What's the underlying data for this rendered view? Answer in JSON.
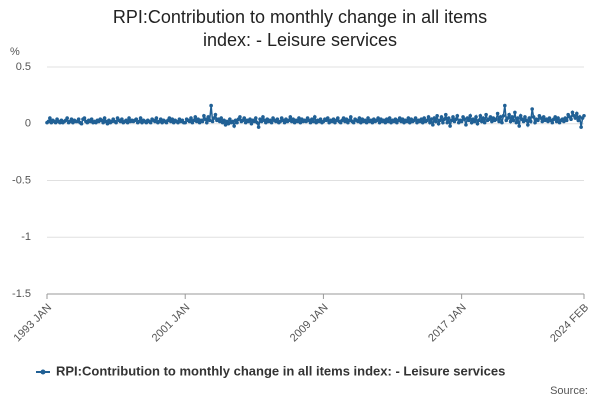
{
  "chart_data": {
    "type": "line",
    "title": "RPI:Contribution to monthly change in all items index: - Leisure services",
    "y_label": "%",
    "source": "Source:",
    "categories": [
      "1993 JAN",
      null,
      null,
      null,
      null,
      null,
      null,
      null,
      null,
      null,
      null,
      null,
      null,
      null,
      null,
      null,
      null,
      null,
      null,
      null,
      null,
      null,
      null,
      null,
      null,
      null,
      null,
      null,
      null,
      null,
      null,
      null,
      null,
      null,
      null,
      null,
      null,
      null,
      null,
      null,
      null,
      null,
      null,
      null,
      null,
      null,
      null,
      null,
      null,
      null,
      null,
      null,
      null,
      null,
      null,
      null,
      null,
      null,
      null,
      null,
      null,
      null,
      null,
      null,
      null,
      null,
      null,
      null,
      null,
      null,
      null,
      null,
      null,
      null,
      null,
      null,
      null,
      null,
      null,
      null,
      null,
      null,
      null,
      null,
      null,
      null,
      null,
      null,
      null,
      null,
      null,
      null,
      null,
      null,
      null,
      null,
      "2001 JAN",
      null,
      null,
      null,
      null,
      null,
      null,
      null,
      null,
      null,
      null,
      null,
      null,
      null,
      null,
      null,
      null,
      null,
      null,
      null,
      null,
      null,
      null,
      null,
      null,
      null,
      null,
      null,
      null,
      null,
      null,
      null,
      null,
      null,
      null,
      null,
      null,
      null,
      null,
      null,
      null,
      null,
      null,
      null,
      null,
      null,
      null,
      null,
      null,
      null,
      null,
      null,
      null,
      null,
      null,
      null,
      null,
      null,
      null,
      null,
      null,
      null,
      null,
      null,
      null,
      null,
      null,
      null,
      null,
      null,
      null,
      null,
      null,
      null,
      null,
      null,
      null,
      null,
      null,
      null,
      null,
      null,
      null,
      null,
      null,
      null,
      null,
      null,
      null,
      null,
      null,
      null,
      null,
      null,
      null,
      null,
      "2009 JAN",
      null,
      null,
      null,
      null,
      null,
      null,
      null,
      null,
      null,
      null,
      null,
      null,
      null,
      null,
      null,
      null,
      null,
      null,
      null,
      null,
      null,
      null,
      null,
      null,
      null,
      null,
      null,
      null,
      null,
      null,
      null,
      null,
      null,
      null,
      null,
      null,
      null,
      null,
      null,
      null,
      null,
      null,
      null,
      null,
      null,
      null,
      null,
      null,
      null,
      null,
      null,
      null,
      null,
      null,
      null,
      null,
      null,
      null,
      null,
      null,
      null,
      null,
      null,
      null,
      null,
      null,
      null,
      null,
      null,
      null,
      null,
      null,
      null,
      null,
      null,
      null,
      null,
      null,
      null,
      null,
      null,
      null,
      null,
      null,
      null,
      null,
      null,
      null,
      null,
      null,
      null,
      null,
      null,
      null,
      null,
      "2017 JAN",
      null,
      null,
      null,
      null,
      null,
      null,
      null,
      null,
      null,
      null,
      null,
      null,
      null,
      null,
      null,
      null,
      null,
      null,
      null,
      null,
      null,
      null,
      null,
      null,
      null,
      null,
      null,
      null,
      null,
      null,
      null,
      null,
      null,
      null,
      null,
      null,
      null,
      null,
      null,
      null,
      null,
      null,
      null,
      null,
      null,
      null,
      null,
      null,
      null,
      null,
      null,
      null,
      null,
      null,
      null,
      null,
      null,
      null,
      null,
      null,
      null,
      null,
      null,
      null,
      null,
      null,
      null,
      null,
      null,
      null,
      null,
      null,
      null,
      null,
      null,
      null,
      null,
      null,
      null,
      null,
      null,
      null,
      null,
      null,
      "2024 FEB"
    ],
    "series": [
      {
        "name": "RPI:Contribution to monthly change in all items index: - Leisure services",
        "color": "#206095",
        "values": [
          0.01,
          0.02,
          0.05,
          0.01,
          0.03,
          0.02,
          0.01,
          0.04,
          0.02,
          0.01,
          0.03,
          0.01,
          0.02,
          0.03,
          0.05,
          0.01,
          0.02,
          0.04,
          0.01,
          0.03,
          0.02,
          0.02,
          0.04,
          0.01,
          0.0,
          0.04,
          0.05,
          0.02,
          0.01,
          0.03,
          0.02,
          0.04,
          0.01,
          0.02,
          0.01,
          0.03,
          0.02,
          0.04,
          0.03,
          0.01,
          0.05,
          0.02,
          0.0,
          0.03,
          0.01,
          0.02,
          0.04,
          0.02,
          0.01,
          0.05,
          0.03,
          0.02,
          0.04,
          0.01,
          0.02,
          0.03,
          0.01,
          0.05,
          0.02,
          0.03,
          0.02,
          0.03,
          0.04,
          0.01,
          0.02,
          0.05,
          0.01,
          0.03,
          0.02,
          0.01,
          0.03,
          0.02,
          0.01,
          0.04,
          0.03,
          0.02,
          0.05,
          0.01,
          0.02,
          0.04,
          0.01,
          0.03,
          0.02,
          0.01,
          0.03,
          0.05,
          0.02,
          0.04,
          0.01,
          0.03,
          0.02,
          0.01,
          0.04,
          0.02,
          0.03,
          0.01,
          0.01,
          0.04,
          0.03,
          0.02,
          0.05,
          0.01,
          0.03,
          0.06,
          0.02,
          0.04,
          0.01,
          0.03,
          0.02,
          0.07,
          0.04,
          0.01,
          0.06,
          0.03,
          0.16,
          0.02,
          0.05,
          0.08,
          0.03,
          0.04,
          0.02,
          0.05,
          0.01,
          0.03,
          -0.01,
          0.02,
          0.0,
          0.04,
          0.01,
          0.02,
          -0.02,
          0.03,
          0.01,
          0.04,
          0.06,
          0.02,
          0.03,
          0.05,
          0.01,
          0.03,
          0.02,
          0.04,
          0.0,
          0.03,
          0.02,
          0.05,
          0.01,
          -0.03,
          0.04,
          0.02,
          0.06,
          0.03,
          0.01,
          0.04,
          0.02,
          0.03,
          0.01,
          0.05,
          0.03,
          0.02,
          0.04,
          0.01,
          0.02,
          0.05,
          0.03,
          0.01,
          0.04,
          0.02,
          0.03,
          0.06,
          0.02,
          0.04,
          0.01,
          0.03,
          0.02,
          0.05,
          0.01,
          0.04,
          0.02,
          0.03,
          0.02,
          0.05,
          0.03,
          0.01,
          0.04,
          0.02,
          0.06,
          0.01,
          0.03,
          0.02,
          0.04,
          0.01,
          0.02,
          0.04,
          0.03,
          0.05,
          0.01,
          0.03,
          0.02,
          0.04,
          0.01,
          0.03,
          0.05,
          0.02,
          0.01,
          0.03,
          0.05,
          0.02,
          0.04,
          0.01,
          0.03,
          0.06,
          0.02,
          0.01,
          0.04,
          0.03,
          0.02,
          0.05,
          0.01,
          0.04,
          0.02,
          0.03,
          0.01,
          0.05,
          0.02,
          0.03,
          0.01,
          0.04,
          0.02,
          0.03,
          0.05,
          0.01,
          0.04,
          0.02,
          0.03,
          0.01,
          0.04,
          0.02,
          0.05,
          0.01,
          0.03,
          0.02,
          0.04,
          0.01,
          0.03,
          0.05,
          0.02,
          0.04,
          0.01,
          0.03,
          0.02,
          0.05,
          0.01,
          0.04,
          0.02,
          0.03,
          0.05,
          0.01,
          0.03,
          0.02,
          0.04,
          0.01,
          0.05,
          0.02,
          0.03,
          0.06,
          0.01,
          0.04,
          -0.01,
          0.05,
          0.02,
          0.07,
          0.0,
          0.03,
          0.06,
          0.01,
          0.04,
          0.08,
          0.01,
          0.05,
          -0.02,
          0.03,
          0.06,
          0.02,
          0.04,
          0.07,
          0.01,
          0.03,
          0.02,
          0.06,
          0.04,
          -0.01,
          0.05,
          0.03,
          0.07,
          0.01,
          0.04,
          0.02,
          0.06,
          0.0,
          0.03,
          0.07,
          0.02,
          0.05,
          0.01,
          0.08,
          0.03,
          0.04,
          0.06,
          0.02,
          0.05,
          0.03,
          0.04,
          0.09,
          0.02,
          0.06,
          0.01,
          0.07,
          0.16,
          0.03,
          0.05,
          0.08,
          0.02,
          0.06,
          0.03,
          0.1,
          0.01,
          0.05,
          -0.02,
          0.07,
          0.04,
          0.02,
          0.06,
          0.03,
          -0.01,
          0.05,
          0.02,
          0.13,
          0.06,
          0.01,
          0.04,
          0.03,
          0.07,
          0.05,
          0.02,
          0.06,
          0.03,
          0.04,
          0.02,
          0.05,
          0.03,
          0.01,
          0.04,
          0.06,
          0.02,
          0.05,
          0.01,
          0.03,
          0.04,
          0.02,
          0.05,
          0.03,
          0.08,
          0.06,
          0.04,
          0.1,
          0.07,
          0.05,
          0.09,
          0.03,
          0.06,
          -0.03,
          0.05,
          0.07
        ]
      }
    ],
    "ylim": [
      -1.5,
      0.5
    ],
    "yticks": [
      0.5,
      0,
      -0.5,
      -1,
      -1.5
    ],
    "grid": true
  }
}
